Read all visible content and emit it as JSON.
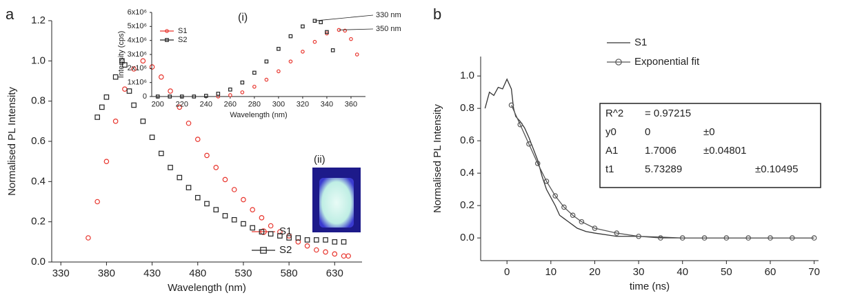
{
  "chart_data": [
    {
      "type": "scatter",
      "panel": "a",
      "x_label": "Wavelength (nm)",
      "y_label": "Normalised PL Intensity",
      "xlim": [
        320,
        660
      ],
      "ylim": [
        0,
        1.2
      ],
      "xticks": [
        330,
        380,
        430,
        480,
        530,
        580,
        630
      ],
      "yticks": [
        {
          "value": 0,
          "label": "0.0"
        },
        0.2,
        0.4,
        0.6,
        0.8,
        {
          "value": 1,
          "label": "1.0"
        },
        1.2
      ],
      "series": [
        {
          "name": "S1",
          "color": "#e8342c",
          "marker": "circle",
          "x": [
            360,
            370,
            380,
            390,
            400,
            410,
            420,
            430,
            440,
            450,
            460,
            470,
            480,
            490,
            500,
            510,
            520,
            530,
            540,
            550,
            560,
            570,
            580,
            590,
            600,
            610,
            620,
            630,
            640,
            645
          ],
          "values": [
            0.12,
            0.3,
            0.5,
            0.7,
            0.86,
            0.96,
            1.0,
            0.97,
            0.92,
            0.85,
            0.77,
            0.69,
            0.61,
            0.53,
            0.47,
            0.41,
            0.36,
            0.31,
            0.26,
            0.22,
            0.18,
            0.15,
            0.13,
            0.1,
            0.08,
            0.06,
            0.05,
            0.04,
            0.03,
            0.03
          ]
        },
        {
          "name": "S2",
          "color": "#222222",
          "marker": "square",
          "x": [
            370,
            375,
            380,
            390,
            397,
            400,
            405,
            410,
            420,
            430,
            440,
            450,
            460,
            470,
            480,
            490,
            500,
            510,
            520,
            530,
            540,
            550,
            560,
            570,
            580,
            590,
            600,
            610,
            620,
            630,
            640
          ],
          "values": [
            0.72,
            0.77,
            0.82,
            0.92,
            1.0,
            0.98,
            0.85,
            0.78,
            0.7,
            0.62,
            0.54,
            0.47,
            0.42,
            0.37,
            0.32,
            0.29,
            0.26,
            0.23,
            0.21,
            0.19,
            0.17,
            0.15,
            0.14,
            0.13,
            0.12,
            0.12,
            0.11,
            0.11,
            0.11,
            0.1,
            0.1
          ]
        }
      ]
    },
    {
      "type": "scatter",
      "panel": "(i)",
      "x_label": "Wavelength (nm)",
      "y_label": "Intensity (cps)",
      "xlim": [
        195,
        372
      ],
      "ylim": [
        0,
        6000000
      ],
      "xticks": [
        200,
        220,
        240,
        260,
        280,
        300,
        320,
        340,
        360
      ],
      "yticks": [
        0,
        {
          "value": 1000000,
          "label": "1x10⁶"
        },
        {
          "value": 2000000,
          "label": "2x10⁶"
        },
        {
          "value": 3000000,
          "label": "3x10⁶"
        },
        {
          "value": 4000000,
          "label": "4x10⁶"
        },
        {
          "value": 5000000,
          "label": "5x10⁶"
        },
        {
          "value": 6000000,
          "label": "6x10⁶"
        }
      ],
      "series": [
        {
          "name": "S1",
          "color": "#e8342c",
          "marker": "circle",
          "x": [
            250,
            260,
            270,
            280,
            290,
            300,
            310,
            320,
            330,
            340,
            350,
            355,
            360,
            365
          ],
          "values": [
            0,
            100000,
            300000,
            700000,
            1200000,
            1800000,
            2500000,
            3200000,
            3900000,
            4500000,
            4750000,
            4700000,
            4100000,
            3000000
          ]
        },
        {
          "name": "S2",
          "color": "#222222",
          "marker": "square",
          "x": [
            200,
            210,
            220,
            230,
            240,
            250,
            260,
            270,
            280,
            290,
            300,
            310,
            320,
            330,
            335,
            340,
            345
          ],
          "values": [
            0,
            0,
            0,
            0,
            50000,
            200000,
            500000,
            1000000,
            1700000,
            2500000,
            3400000,
            4300000,
            5000000,
            5400000,
            5300000,
            4600000,
            3300000
          ]
        }
      ],
      "annotations": [
        {
          "text": "330 nm",
          "x": 330,
          "y": 5400000
        },
        {
          "text": "350 nm",
          "x": 350,
          "y": 4750000
        }
      ]
    },
    {
      "type": "line",
      "panel": "b",
      "x_label": "time (ns)",
      "y_label": "Normalised PL Intensity",
      "xlim": [
        -6,
        71
      ],
      "ylim": [
        -0.14,
        1.12
      ],
      "xticks": [
        0,
        10,
        20,
        30,
        40,
        50,
        60,
        70
      ],
      "yticks": [
        {
          "value": 0,
          "label": "0.0"
        },
        0.2,
        0.4,
        0.6,
        0.8,
        {
          "value": 1,
          "label": "1.0"
        }
      ],
      "series": [
        {
          "name": "S1",
          "color": "#333333",
          "marker": "line",
          "x": [
            -5,
            -4,
            -3,
            -2,
            -1,
            0,
            0.5,
            1,
            1.5,
            2,
            3,
            4,
            5,
            6,
            7,
            8,
            9,
            10,
            11,
            12,
            13,
            14,
            15,
            16,
            18,
            20,
            25,
            30,
            40,
            50,
            60,
            70
          ],
          "values": [
            0.8,
            0.9,
            0.88,
            0.93,
            0.92,
            0.98,
            0.95,
            0.92,
            0.8,
            0.75,
            0.72,
            0.68,
            0.62,
            0.55,
            0.48,
            0.38,
            0.3,
            0.25,
            0.2,
            0.14,
            0.12,
            0.1,
            0.08,
            0.06,
            0.04,
            0.03,
            0.01,
            0.01,
            0,
            0,
            0,
            0
          ]
        },
        {
          "name": "Exponential fit",
          "color": "#555555",
          "marker": "circle",
          "x": [
            1,
            3,
            5,
            7,
            9,
            11,
            13,
            15,
            17,
            20,
            25,
            30,
            35,
            40,
            45,
            50,
            55,
            60,
            65,
            70
          ],
          "values": [
            0.82,
            0.7,
            0.58,
            0.46,
            0.35,
            0.26,
            0.19,
            0.14,
            0.1,
            0.06,
            0.03,
            0.01,
            0,
            0,
            0,
            0,
            0,
            0,
            0,
            0
          ]
        }
      ],
      "fit_table": {
        "rows": [
          [
            "R^2",
            "= 0.97215"
          ],
          [
            "y0",
            "0",
            "±0"
          ],
          [
            "A1",
            "1.7006",
            "±0.04801"
          ],
          [
            "t1",
            "5.73289",
            "±0.10495"
          ]
        ]
      }
    }
  ],
  "inset_photo": {
    "label": "(ii)"
  }
}
